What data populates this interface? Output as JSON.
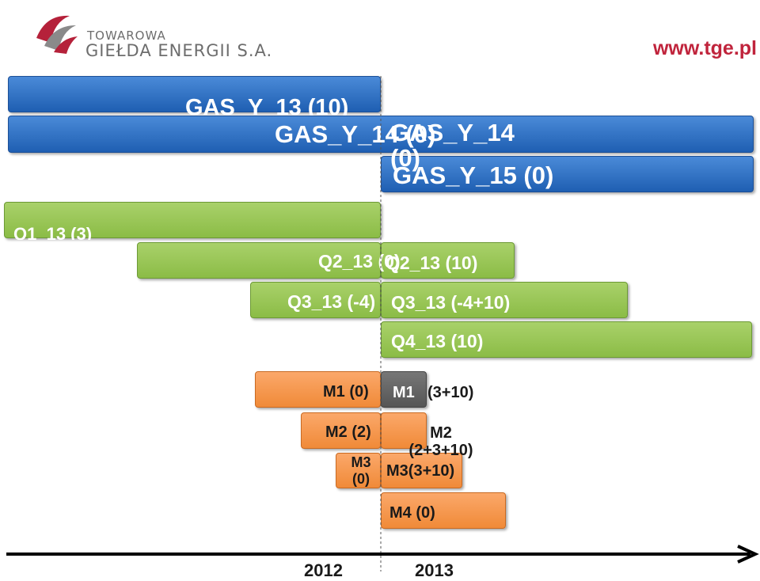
{
  "header": {
    "logo_line1": "TOWAROWA",
    "logo_line2": "GIEŁDA ENERGII S.A.",
    "url": "www.tge.pl"
  },
  "contracts": {
    "gas_y13": "GAS_Y_13 (10)",
    "gas_y14_left": "GAS_Y_14 (0)",
    "gas_y14_right": "GAS_Y_14 (0)",
    "gas_y15": "GAS_Y_15 (0)",
    "q1_13": "Q1_13 (3)",
    "q2_13_left": "Q2_13 (0)",
    "q2_13_right": "Q2_13 (10)",
    "q3_13_left": "Q3_13 (-4)",
    "q3_13_right": "Q3_13 (-4+10)",
    "q4_13": "Q4_13 (10)",
    "m1_left": "M1 (0)",
    "m1_right": "M1",
    "m1_right_value": "(3+10)",
    "m2_left": "M2 (2)",
    "m2_right": "M2 (2+3+10)",
    "m3_left": "M3 (0)",
    "m3_right": "M3(3+10)",
    "m4": "M4 (0)"
  },
  "axis": {
    "year_2012": "2012",
    "year_2013": "2013"
  },
  "colors": {
    "year_bars": "#2f72c6",
    "quarter_bars": "#9bc756",
    "month_bars": "#f59b50",
    "current_month": "#5e5e5e",
    "brand": "#c0243c"
  }
}
